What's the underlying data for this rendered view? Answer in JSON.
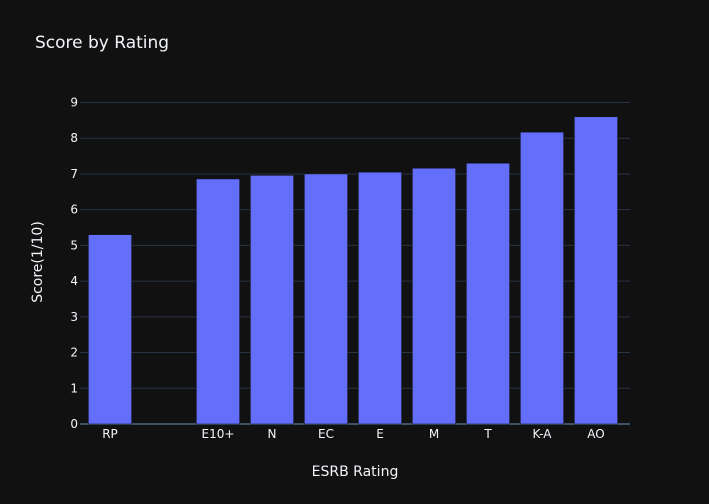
{
  "chart_data": {
    "type": "bar",
    "title": "Score by Rating",
    "xlabel": "ESRB Rating",
    "ylabel": "Score(1/10)",
    "categories": [
      "RP",
      "",
      "E10+",
      "N",
      "EC",
      "E",
      "M",
      "T",
      "K-A",
      "AO"
    ],
    "values": [
      5.3,
      0,
      6.86,
      6.96,
      7.0,
      7.05,
      7.16,
      7.3,
      8.17,
      8.6
    ],
    "ylim": [
      0,
      9.35
    ],
    "yticks": [
      0,
      1,
      2,
      3,
      4,
      5,
      6,
      7,
      8,
      9
    ],
    "grid": true,
    "colors": {
      "bar": "#636efa",
      "background": "#111111",
      "grid": "#283442",
      "text": "#f2f5fa"
    }
  }
}
